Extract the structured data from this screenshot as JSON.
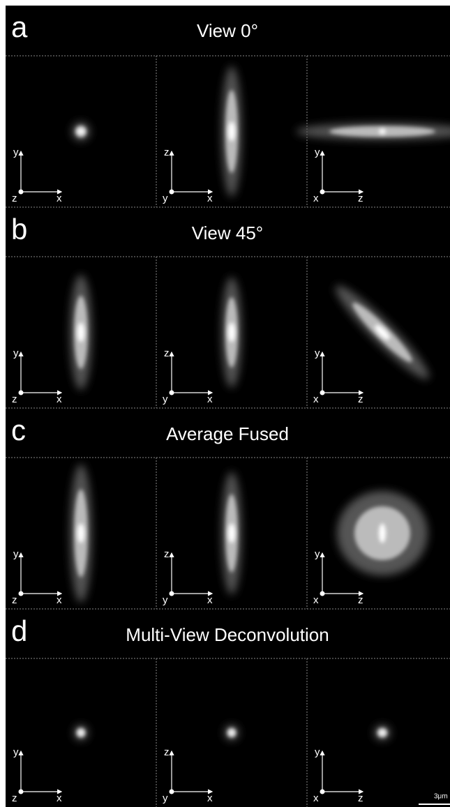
{
  "panels": [
    {
      "letter": "a",
      "title": "View 0°",
      "views": [
        {
          "up": "y",
          "origin": "z",
          "right": "x"
        },
        {
          "up": "z",
          "origin": "y",
          "right": "x"
        },
        {
          "up": "y",
          "origin": "x",
          "right": "z"
        }
      ]
    },
    {
      "letter": "b",
      "title": "View 45°",
      "views": [
        {
          "up": "y",
          "origin": "z",
          "right": "x"
        },
        {
          "up": "z",
          "origin": "y",
          "right": "x"
        },
        {
          "up": "y",
          "origin": "x",
          "right": "z"
        }
      ]
    },
    {
      "letter": "c",
      "title": "Average Fused",
      "views": [
        {
          "up": "y",
          "origin": "z",
          "right": "x"
        },
        {
          "up": "z",
          "origin": "y",
          "right": "x"
        },
        {
          "up": "y",
          "origin": "x",
          "right": "z"
        }
      ]
    },
    {
      "letter": "d",
      "title": "Multi-View Deconvolution",
      "views": [
        {
          "up": "y",
          "origin": "z",
          "right": "x"
        },
        {
          "up": "z",
          "origin": "y",
          "right": "x"
        },
        {
          "up": "y",
          "origin": "x",
          "right": "z"
        }
      ]
    }
  ],
  "scale_bar": "3μm"
}
